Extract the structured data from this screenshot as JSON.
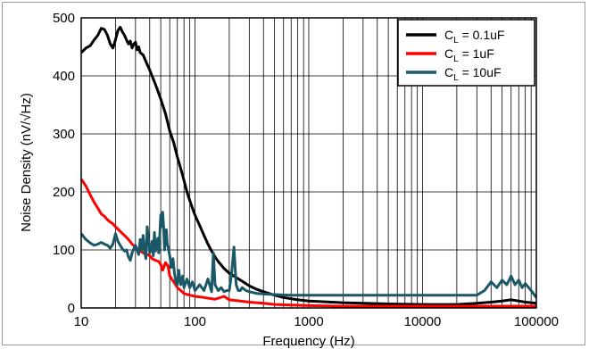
{
  "chart_data": {
    "type": "line",
    "title": "",
    "xlabel": "Frequency (Hz)",
    "ylabel": "Noise Density (nV/√Hz)",
    "xscale": "log",
    "xlim": [
      10,
      100000
    ],
    "ylim": [
      0,
      500
    ],
    "x_ticks": [
      "10",
      "100",
      "1000",
      "10000",
      "100000"
    ],
    "y_ticks": [
      "0",
      "100",
      "200",
      "300",
      "400",
      "500"
    ],
    "grid": true,
    "legend_position": "top-right",
    "series": [
      {
        "name_prefix": "C",
        "name_sub": "L",
        "name_suffix": " = 0.1uF",
        "color": "#000000",
        "points": [
          [
            10,
            440
          ],
          [
            11,
            448
          ],
          [
            12,
            452
          ],
          [
            13,
            462
          ],
          [
            14,
            470
          ],
          [
            15,
            482
          ],
          [
            16,
            480
          ],
          [
            17,
            470
          ],
          [
            18,
            455
          ],
          [
            19,
            448
          ],
          [
            20,
            462
          ],
          [
            21,
            478
          ],
          [
            22,
            484
          ],
          [
            23,
            476
          ],
          [
            24,
            470
          ],
          [
            25,
            462
          ],
          [
            26,
            455
          ],
          [
            27,
            460
          ],
          [
            28,
            448
          ],
          [
            29,
            455
          ],
          [
            30,
            458
          ],
          [
            31,
            445
          ],
          [
            32,
            450
          ],
          [
            33,
            440
          ],
          [
            35,
            436
          ],
          [
            37,
            425
          ],
          [
            40,
            410
          ],
          [
            45,
            385
          ],
          [
            50,
            360
          ],
          [
            55,
            335
          ],
          [
            60,
            305
          ],
          [
            65,
            285
          ],
          [
            70,
            260
          ],
          [
            75,
            240
          ],
          [
            80,
            220
          ],
          [
            85,
            200
          ],
          [
            90,
            185
          ],
          [
            95,
            172
          ],
          [
            100,
            160
          ],
          [
            110,
            142
          ],
          [
            120,
            125
          ],
          [
            130,
            110
          ],
          [
            140,
            98
          ],
          [
            150,
            88
          ],
          [
            160,
            80
          ],
          [
            170,
            74
          ],
          [
            180,
            68
          ],
          [
            200,
            60
          ],
          [
            220,
            55
          ],
          [
            250,
            48
          ],
          [
            280,
            42
          ],
          [
            300,
            38
          ],
          [
            350,
            32
          ],
          [
            400,
            28
          ],
          [
            500,
            22
          ],
          [
            600,
            18
          ],
          [
            800,
            14
          ],
          [
            1000,
            12
          ],
          [
            2000,
            9
          ],
          [
            5000,
            7
          ],
          [
            10000,
            6
          ],
          [
            20000,
            6
          ],
          [
            30000,
            8
          ],
          [
            40000,
            10
          ],
          [
            50000,
            12
          ],
          [
            60000,
            14
          ],
          [
            70000,
            12
          ],
          [
            80000,
            10
          ],
          [
            90000,
            9
          ],
          [
            100000,
            8
          ]
        ]
      },
      {
        "name_prefix": "C",
        "name_sub": "L",
        "name_suffix": " = 1uF",
        "color": "#ff0000",
        "points": [
          [
            10,
            222
          ],
          [
            11,
            210
          ],
          [
            12,
            195
          ],
          [
            13,
            182
          ],
          [
            14,
            172
          ],
          [
            15,
            162
          ],
          [
            16,
            158
          ],
          [
            17,
            152
          ],
          [
            18,
            148
          ],
          [
            19,
            145
          ],
          [
            20,
            140
          ],
          [
            22,
            132
          ],
          [
            24,
            125
          ],
          [
            26,
            118
          ],
          [
            28,
            110
          ],
          [
            30,
            105
          ],
          [
            32,
            100
          ],
          [
            35,
            95
          ],
          [
            38,
            92
          ],
          [
            40,
            90
          ],
          [
            42,
            85
          ],
          [
            45,
            82
          ],
          [
            48,
            80
          ],
          [
            50,
            75
          ],
          [
            52,
            65
          ],
          [
            55,
            78
          ],
          [
            58,
            72
          ],
          [
            60,
            55
          ],
          [
            65,
            45
          ],
          [
            70,
            35
          ],
          [
            75,
            30
          ],
          [
            80,
            25
          ],
          [
            90,
            22
          ],
          [
            100,
            20
          ],
          [
            120,
            18
          ],
          [
            150,
            15
          ],
          [
            180,
            20
          ],
          [
            200,
            14
          ],
          [
            250,
            12
          ],
          [
            300,
            10
          ],
          [
            400,
            8
          ],
          [
            500,
            6
          ],
          [
            700,
            5
          ],
          [
            1000,
            4
          ],
          [
            2000,
            3
          ],
          [
            5000,
            3
          ],
          [
            10000,
            3
          ],
          [
            20000,
            3
          ],
          [
            30000,
            3
          ],
          [
            50000,
            3
          ],
          [
            70000,
            3
          ],
          [
            100000,
            3
          ]
        ]
      },
      {
        "name_prefix": "C",
        "name_sub": "L",
        "name_suffix": " = 10uF",
        "color": "#1b5867",
        "points": [
          [
            10,
            128
          ],
          [
            11,
            118
          ],
          [
            12,
            112
          ],
          [
            13,
            108
          ],
          [
            14,
            110
          ],
          [
            15,
            113
          ],
          [
            16,
            110
          ],
          [
            17,
            108
          ],
          [
            18,
            103
          ],
          [
            19,
            110
          ],
          [
            20,
            128
          ],
          [
            21,
            115
          ],
          [
            22,
            108
          ],
          [
            23,
            102
          ],
          [
            24,
            98
          ],
          [
            25,
            100
          ],
          [
            26,
            88
          ],
          [
            27,
            82
          ],
          [
            28,
            95
          ],
          [
            29,
            102
          ],
          [
            30,
            108
          ],
          [
            31,
            100
          ],
          [
            32,
            92
          ],
          [
            33,
            118
          ],
          [
            34,
            100
          ],
          [
            35,
            125
          ],
          [
            36,
            98
          ],
          [
            37,
            85
          ],
          [
            38,
            140
          ],
          [
            39,
            120
          ],
          [
            40,
            95
          ],
          [
            41,
            100
          ],
          [
            42,
            115
          ],
          [
            43,
            90
          ],
          [
            44,
            130
          ],
          [
            45,
            98
          ],
          [
            46,
            108
          ],
          [
            47,
            120
          ],
          [
            48,
            95
          ],
          [
            49,
            125
          ],
          [
            50,
            160
          ],
          [
            51,
            140
          ],
          [
            52,
            165
          ],
          [
            53,
            140
          ],
          [
            54,
            100
          ],
          [
            55,
            120
          ],
          [
            56,
            135
          ],
          [
            57,
            110
          ],
          [
            58,
            105
          ],
          [
            60,
            90
          ],
          [
            62,
            70
          ],
          [
            64,
            85
          ],
          [
            66,
            60
          ],
          [
            68,
            45
          ],
          [
            70,
            40
          ],
          [
            72,
            65
          ],
          [
            75,
            40
          ],
          [
            78,
            55
          ],
          [
            80,
            35
          ],
          [
            85,
            50
          ],
          [
            90,
            35
          ],
          [
            95,
            45
          ],
          [
            100,
            30
          ],
          [
            110,
            40
          ],
          [
            120,
            30
          ],
          [
            130,
            50
          ],
          [
            140,
            28
          ],
          [
            145,
            95
          ],
          [
            150,
            40
          ],
          [
            160,
            30
          ],
          [
            170,
            35
          ],
          [
            180,
            28
          ],
          [
            190,
            30
          ],
          [
            200,
            30
          ],
          [
            210,
            60
          ],
          [
            220,
            105
          ],
          [
            230,
            40
          ],
          [
            240,
            30
          ],
          [
            250,
            30
          ],
          [
            260,
            35
          ],
          [
            280,
            30
          ],
          [
            300,
            28
          ],
          [
            350,
            25
          ],
          [
            400,
            24
          ],
          [
            500,
            23
          ],
          [
            700,
            22
          ],
          [
            1000,
            22
          ],
          [
            2000,
            22
          ],
          [
            5000,
            22
          ],
          [
            10000,
            22
          ],
          [
            20000,
            22
          ],
          [
            30000,
            22
          ],
          [
            35000,
            30
          ],
          [
            40000,
            45
          ],
          [
            45000,
            35
          ],
          [
            50000,
            48
          ],
          [
            55000,
            40
          ],
          [
            60000,
            55
          ],
          [
            65000,
            40
          ],
          [
            70000,
            48
          ],
          [
            75000,
            35
          ],
          [
            80000,
            42
          ],
          [
            90000,
            30
          ],
          [
            100000,
            18
          ]
        ]
      }
    ]
  }
}
